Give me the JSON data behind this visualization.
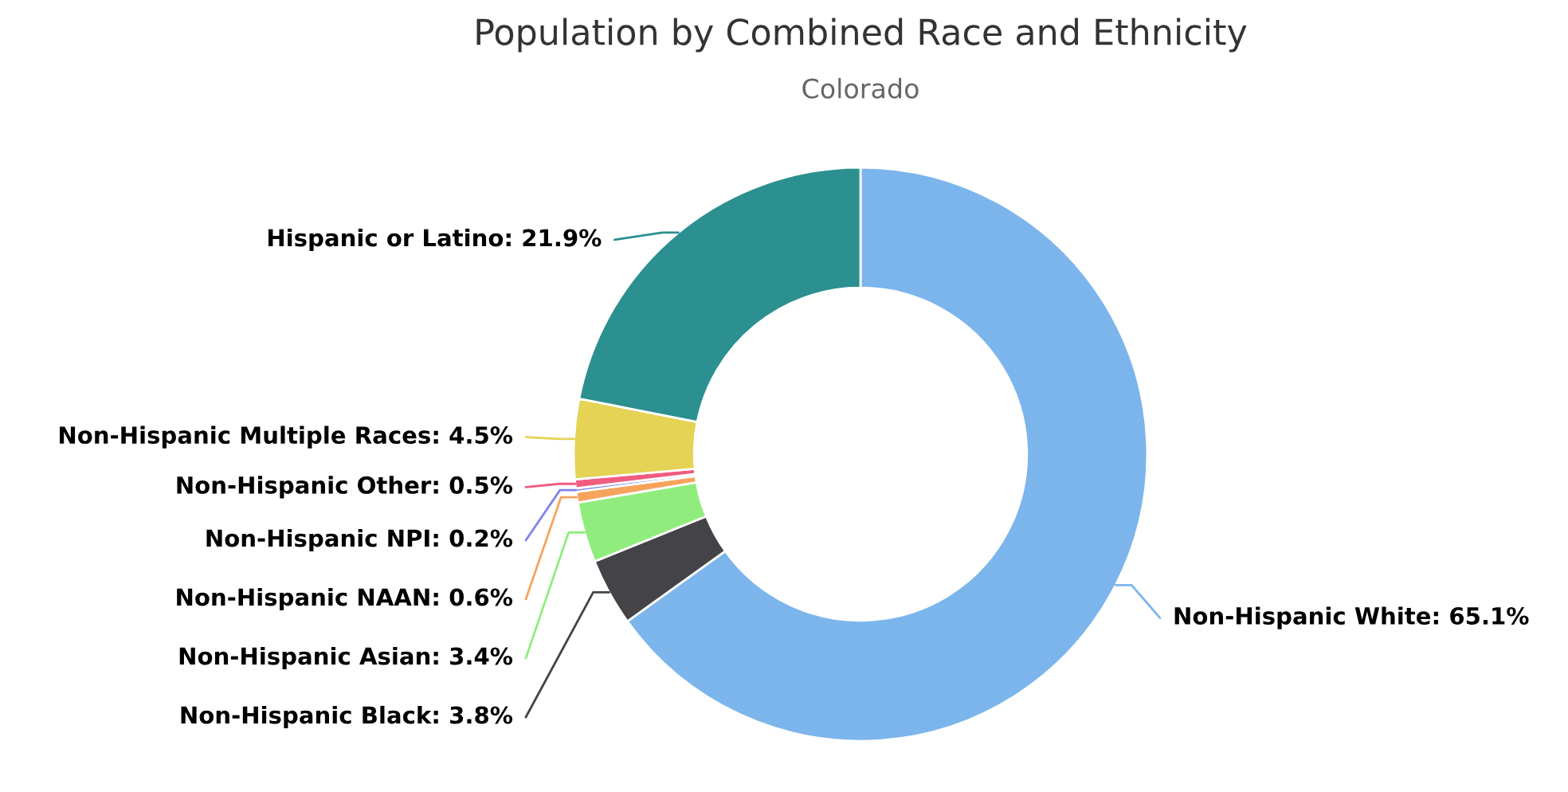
{
  "chart_data": {
    "type": "donut",
    "title": "Population by Combined Race and Ethnicity",
    "subtitle": "Colorado",
    "categories": [
      "Non-Hispanic White",
      "Non-Hispanic Black",
      "Non-Hispanic Asian",
      "Non-Hispanic NAAN",
      "Non-Hispanic NPI",
      "Non-Hispanic Other",
      "Non-Hispanic Multiple Races",
      "Hispanic or Latino"
    ],
    "values": [
      65.1,
      3.8,
      3.4,
      0.6,
      0.2,
      0.5,
      4.5,
      21.9
    ],
    "value_labels": [
      "65.1%",
      "3.8%",
      "3.4%",
      "0.6%",
      "0.2%",
      "0.5%",
      "4.5%",
      "21.9%"
    ],
    "colors": [
      "#7cb5ec",
      "#434348",
      "#90ed7d",
      "#f7a35c",
      "#8085e9",
      "#f15c80",
      "#e4d354",
      "#2b908f"
    ],
    "legend": false
  }
}
